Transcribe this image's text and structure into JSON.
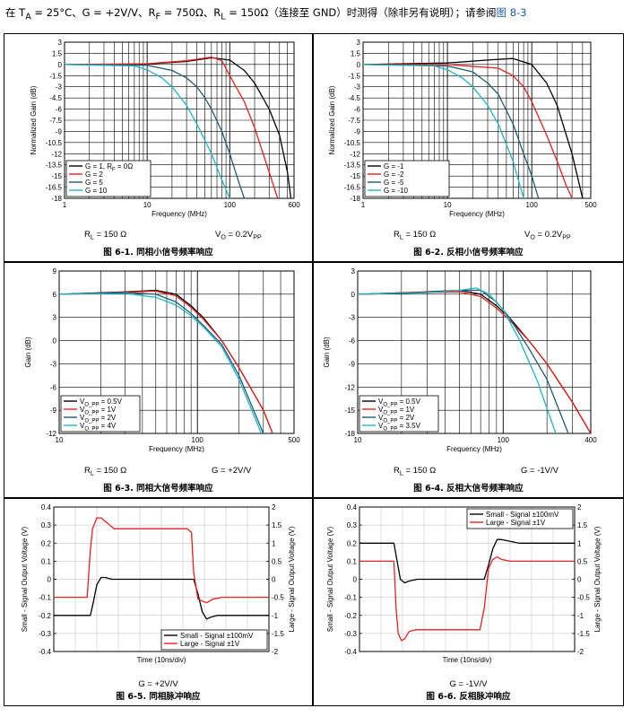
{
  "header": {
    "condition_text": "在 T",
    "ta_sub": "A",
    "rest_text": " = 25°C、G = +2V/V、R",
    "rf_sub": "F",
    "rf_text": " = 750Ω、R",
    "rl_sub": "L",
    "rl_text": " = 150Ω（连接至 GND）时测得（除非另有说明）；请参阅",
    "link_text": "图 8-3"
  },
  "chart_data": [
    {
      "type": "line",
      "id": "fig61",
      "caption": "图 6-1. 同相小信号频率响应",
      "xlabel": "Frequency (MHz)",
      "ylabel": "Normalized Gain (dB)",
      "xscale": "log",
      "xlim": [
        1,
        600
      ],
      "ylim": [
        -18,
        3
      ],
      "xticks": [
        1,
        10,
        100,
        600
      ],
      "yticks": [
        3,
        1.5,
        0,
        -1.5,
        -3,
        -4.5,
        -6,
        -7.5,
        -9,
        -10.5,
        -12,
        -13.5,
        -15,
        -16.5,
        -18
      ],
      "legend_position": "bottom-left",
      "cond_left": "R",
      "cond_left_sub": "L",
      "cond_left_val": " = 150 Ω",
      "cond_right": "V",
      "cond_right_sub": "O",
      "cond_right_val": " = 0.2V",
      "cond_right_sub2": "PP",
      "series": [
        {
          "name": "G = 1, R",
          "name_sub": "F",
          "name_tail": " = 0Ω",
          "color": "#000000",
          "x": [
            1,
            10,
            30,
            60,
            100,
            150,
            200,
            300,
            400,
            500,
            550
          ],
          "y": [
            0,
            0.05,
            0.4,
            0.9,
            0.6,
            -0.8,
            -2.5,
            -6,
            -9.5,
            -14.5,
            -18
          ]
        },
        {
          "name": "G = 2",
          "color": "#e8211d",
          "x": [
            1,
            10,
            30,
            60,
            80,
            100,
            150,
            200,
            300,
            380
          ],
          "y": [
            0,
            0.1,
            0.5,
            1.0,
            0.5,
            -1.5,
            -5,
            -8.5,
            -14.5,
            -18
          ]
        },
        {
          "name": "G = 5",
          "color": "#1f5b73",
          "x": [
            1,
            10,
            20,
            30,
            40,
            50,
            60,
            80,
            100,
            130,
            150
          ],
          "y": [
            0,
            -0.1,
            -0.8,
            -1.8,
            -3,
            -4.5,
            -6,
            -9,
            -12,
            -16,
            -18
          ]
        },
        {
          "name": "G = 10",
          "color": "#1fb5c7",
          "x": [
            1,
            7,
            10,
            15,
            20,
            30,
            40,
            60,
            80,
            100
          ],
          "y": [
            0,
            -0.2,
            -0.7,
            -1.8,
            -3,
            -5.5,
            -8,
            -12,
            -15.5,
            -18
          ]
        }
      ]
    },
    {
      "type": "line",
      "id": "fig62",
      "caption": "图 6-2. 反相小信号频率响应",
      "xlabel": "Frequency (MHz)",
      "ylabel": "Normalized Gain (dB)",
      "xscale": "log",
      "xlim": [
        1,
        500
      ],
      "ylim": [
        -18,
        3
      ],
      "xticks": [
        1,
        10,
        100,
        500
      ],
      "yticks": [
        3,
        1.5,
        0,
        -1.5,
        -3,
        -4.5,
        -6,
        -7.5,
        -9,
        -10.5,
        -12,
        -13.5,
        -15,
        -16.5,
        -18
      ],
      "legend_position": "bottom-left",
      "cond_left": "R",
      "cond_left_sub": "L",
      "cond_left_val": " = 150 Ω",
      "cond_right": "V",
      "cond_right_sub": "O",
      "cond_right_val": " = 0.2V",
      "cond_right_sub2": "PP",
      "series": [
        {
          "name": "G = -1",
          "color": "#000000",
          "x": [
            1,
            10,
            30,
            60,
            100,
            150,
            200,
            300,
            400
          ],
          "y": [
            0,
            0.2,
            0.6,
            0.8,
            0,
            -2.5,
            -5.5,
            -12,
            -18
          ]
        },
        {
          "name": "G = -2",
          "color": "#e8211d",
          "x": [
            1,
            10,
            40,
            60,
            80,
            100,
            150,
            200,
            250,
            300
          ],
          "y": [
            0,
            0,
            -0.5,
            -1.5,
            -3,
            -5,
            -9.5,
            -13,
            -16,
            -18
          ]
        },
        {
          "name": "G = -5",
          "color": "#1f5b73",
          "x": [
            1,
            10,
            20,
            30,
            40,
            60,
            80,
            100,
            120
          ],
          "y": [
            0,
            -0.2,
            -1,
            -2.5,
            -4,
            -8,
            -12,
            -15,
            -18
          ]
        },
        {
          "name": "G = -10",
          "color": "#1fb5c7",
          "x": [
            1,
            7,
            10,
            15,
            20,
            30,
            40,
            60,
            80
          ],
          "y": [
            0,
            -0.2,
            -0.7,
            -1.8,
            -3,
            -5.5,
            -8,
            -13,
            -18
          ]
        }
      ]
    },
    {
      "type": "line",
      "id": "fig63",
      "caption": "图 6-3. 同相大信号频率响应",
      "xlabel": "Frequency (MHz)",
      "ylabel": "Gain (dB)",
      "xscale": "log",
      "xlim": [
        10,
        500
      ],
      "ylim": [
        -12,
        9
      ],
      "xticks": [
        10,
        100,
        500
      ],
      "yticks": [
        9,
        6,
        3,
        0,
        -3,
        -6,
        -9,
        -12
      ],
      "legend_position": "bottom-left",
      "cond_left": "R",
      "cond_left_sub": "L",
      "cond_left_val": " = 150 Ω",
      "cond_right": "G = +2V/V",
      "series": [
        {
          "name": "V",
          "name_sub": "O_PP",
          "name_tail": " = 0.5V",
          "color": "#000000",
          "x": [
            10,
            30,
            50,
            70,
            90,
            110,
            150,
            200,
            300,
            350
          ],
          "y": [
            6,
            6.3,
            6.5,
            6.0,
            4.5,
            3.0,
            0,
            -3.5,
            -9,
            -12
          ]
        },
        {
          "name": "V",
          "name_sub": "O_PP",
          "name_tail": " = 1V",
          "color": "#e8211d",
          "x": [
            10,
            30,
            50,
            70,
            90,
            110,
            150,
            200,
            300,
            350
          ],
          "y": [
            6,
            6.25,
            6.4,
            5.8,
            4.3,
            2.8,
            0,
            -3.5,
            -9,
            -12
          ]
        },
        {
          "name": "V",
          "name_sub": "O_PP",
          "name_tail": " = 2V",
          "color": "#1f5b73",
          "x": [
            10,
            30,
            50,
            70,
            90,
            110,
            150,
            200,
            300
          ],
          "y": [
            6,
            6.2,
            6.0,
            5.0,
            3.5,
            2.0,
            -0.5,
            -4.5,
            -12
          ]
        },
        {
          "name": "V",
          "name_sub": "O_PP",
          "name_tail": " = 4V",
          "color": "#1fb5c7",
          "x": [
            10,
            30,
            50,
            70,
            90,
            110,
            150,
            200,
            290
          ],
          "y": [
            6,
            6.1,
            5.6,
            4.6,
            3.2,
            1.8,
            -0.8,
            -5,
            -12
          ]
        }
      ]
    },
    {
      "type": "line",
      "id": "fig64",
      "caption": "图 6-4. 反相大信号频率响应",
      "xlabel": "Frequency (MHz)",
      "ylabel": "Gain (dB)",
      "xscale": "log",
      "xlim": [
        10,
        400
      ],
      "ylim": [
        -18,
        3
      ],
      "xticks": [
        10,
        100,
        400
      ],
      "yticks": [
        3,
        0,
        -3,
        -6,
        -9,
        -12,
        -15,
        -18
      ],
      "legend_position": "bottom-left",
      "cond_left": "R",
      "cond_left_sub": "L",
      "cond_left_val": " = 150 Ω",
      "cond_right": "G = -1V/V",
      "series": [
        {
          "name": "V",
          "name_sub": "O_PP",
          "name_tail": " = 0.5V",
          "color": "#000000",
          "x": [
            10,
            30,
            50,
            70,
            90,
            110,
            150,
            200,
            300,
            400
          ],
          "y": [
            0,
            0.3,
            0.5,
            0,
            -1.5,
            -3,
            -6,
            -9,
            -14,
            -18
          ]
        },
        {
          "name": "V",
          "name_sub": "O_PP",
          "name_tail": " = 1V",
          "color": "#e8211d",
          "x": [
            10,
            30,
            50,
            70,
            90,
            110,
            150,
            200,
            300,
            400
          ],
          "y": [
            0,
            0.25,
            0.3,
            -0.3,
            -1.8,
            -3.3,
            -6,
            -9,
            -14,
            -18
          ]
        },
        {
          "name": "V",
          "name_sub": "O_PP",
          "name_tail": " = 2V",
          "color": "#1f5b73",
          "x": [
            10,
            30,
            50,
            70,
            90,
            110,
            150,
            200,
            280
          ],
          "y": [
            0,
            0.2,
            0.5,
            0.5,
            -1,
            -3,
            -7,
            -11,
            -18
          ]
        },
        {
          "name": "V",
          "name_sub": "O_PP",
          "name_tail": " = 3.5V",
          "color": "#1fb5c7",
          "x": [
            10,
            30,
            50,
            65,
            80,
            100,
            130,
            170,
            230
          ],
          "y": [
            0,
            0.2,
            0.5,
            0.8,
            0,
            -2,
            -6,
            -11,
            -18
          ]
        }
      ]
    },
    {
      "type": "line",
      "id": "fig65",
      "caption": "图 6-5. 同相脉冲响应",
      "xlabel": "Time (10ns/div)",
      "ylabel": "Small - Signal Output Voltage (V)",
      "y2label": "Large - Signal Output Voltage (V)",
      "xlim": [
        0,
        10
      ],
      "ylim": [
        -0.4,
        0.4
      ],
      "y2lim": [
        -2,
        2
      ],
      "yticks": [
        0.4,
        0.3,
        0.2,
        0.1,
        0,
        -0.1,
        -0.2,
        -0.3,
        -0.4
      ],
      "y2ticks": [
        2,
        1.5,
        1,
        0.5,
        0,
        -0.5,
        -1,
        -1.5,
        -2
      ],
      "legend_position": "bottom-right",
      "cond_center": "G = +2V/V",
      "series": [
        {
          "name": "Small - Signal ±100mV",
          "color": "#000000",
          "axis": "left",
          "x": [
            0,
            1.7,
            1.85,
            2.0,
            2.2,
            2.4,
            2.7,
            3.0,
            4,
            6.5,
            6.7,
            6.9,
            7.1,
            7.3,
            7.6,
            8.0,
            10
          ],
          "y": [
            -0.2,
            -0.2,
            -0.12,
            -0.03,
            0.01,
            0.01,
            0.0,
            0.0,
            0.0,
            0.0,
            -0.08,
            -0.18,
            -0.22,
            -0.21,
            -0.2,
            -0.2,
            -0.2
          ]
        },
        {
          "name": "Large - Signal ±1V",
          "color": "#e8211d",
          "axis": "right",
          "x": [
            0,
            1.55,
            1.7,
            1.8,
            2.0,
            2.2,
            2.5,
            2.8,
            3.2,
            4,
            5.5,
            6.2,
            6.4,
            6.5,
            6.7,
            6.9,
            7.1,
            7.4,
            7.8,
            10
          ],
          "y": [
            -0.5,
            -0.5,
            0.8,
            1.4,
            1.7,
            1.7,
            1.55,
            1.4,
            1.4,
            1.4,
            1.4,
            1.4,
            1.3,
            0.2,
            -0.55,
            -0.6,
            -0.65,
            -0.55,
            -0.5,
            -0.5
          ]
        }
      ]
    },
    {
      "type": "line",
      "id": "fig66",
      "caption": "图 6-6. 反相脉冲响应",
      "xlabel": "Time (10ns/div)",
      "ylabel": "Small - Signal Output Voltage (V)",
      "y2label": "Large - Signal Output Voltage (V)",
      "xlim": [
        0,
        10
      ],
      "ylim": [
        -0.4,
        0.4
      ],
      "y2lim": [
        -2,
        2
      ],
      "yticks": [
        0.4,
        0.3,
        0.2,
        0.1,
        0,
        -0.1,
        -0.2,
        -0.3,
        -0.4
      ],
      "y2ticks": [
        2,
        1.5,
        1,
        0.5,
        0,
        -0.5,
        -1,
        -1.5,
        -2
      ],
      "legend_position": "top-right",
      "cond_center": "G = -1V/V",
      "series": [
        {
          "name": "Small - Signal ±100mV",
          "color": "#000000",
          "axis": "left",
          "x": [
            0,
            1.6,
            1.75,
            1.9,
            2.1,
            2.3,
            2.7,
            3.2,
            5.5,
            5.8,
            6.0,
            6.2,
            6.4,
            6.6,
            7.0,
            7.4,
            10
          ],
          "y": [
            0.2,
            0.2,
            0.1,
            0.0,
            -0.02,
            -0.01,
            0.0,
            0.0,
            0.0,
            0.0,
            0.08,
            0.17,
            0.22,
            0.22,
            0.21,
            0.2,
            0.2
          ]
        },
        {
          "name": "Large - Signal ±1V",
          "color": "#e8211d",
          "axis": "right",
          "x": [
            0,
            1.6,
            1.7,
            1.8,
            1.95,
            2.1,
            2.3,
            2.6,
            3.0,
            4,
            5.6,
            5.8,
            6.0,
            6.2,
            6.4,
            6.6,
            7.0,
            10
          ],
          "y": [
            0.5,
            0.5,
            -0.8,
            -1.5,
            -1.7,
            -1.65,
            -1.45,
            -1.4,
            -1.4,
            -1.4,
            -1.4,
            -0.8,
            0.3,
            0.55,
            0.62,
            0.55,
            0.5,
            0.5
          ]
        }
      ]
    }
  ]
}
